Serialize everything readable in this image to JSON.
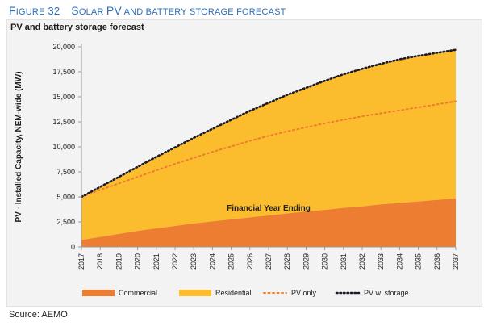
{
  "figure": {
    "number_prefix": "F",
    "number_rest": "IGURE",
    "number": "32",
    "title_first": "S",
    "title_rest1": "OLAR ",
    "title_pv": "PV",
    "title_rest2": " AND BATTERY STORAGE FORECAST"
  },
  "source": "Source: AEMO",
  "chart_data": {
    "type": "area",
    "title": "PV and battery storage forecast",
    "xlabel": "Financial Year Ending",
    "ylabel": "PV - Installed Capacity, NEM-wide (MW)",
    "ylim": [
      0,
      20000
    ],
    "yticks": [
      0,
      2500,
      5000,
      7500,
      10000,
      12500,
      15000,
      17500,
      20000
    ],
    "ytick_labels": [
      "0",
      "2,500",
      "5,000",
      "7,500",
      "10,000",
      "12,500",
      "15,000",
      "17,500",
      "20,000"
    ],
    "x": [
      "2017",
      "2018",
      "2019",
      "2020",
      "2021",
      "2022",
      "2023",
      "2024",
      "2025",
      "2026",
      "2027",
      "2028",
      "2029",
      "2030",
      "2031",
      "2032",
      "2033",
      "2034",
      "2035",
      "2036",
      "2037"
    ],
    "legend_position": "bottom",
    "grid": false,
    "series": [
      {
        "name": "Commercial",
        "kind": "stacked-area",
        "color": "#ed7d31",
        "values": [
          700,
          1000,
          1300,
          1600,
          1850,
          2100,
          2350,
          2550,
          2750,
          2950,
          3150,
          3350,
          3550,
          3700,
          3900,
          4050,
          4250,
          4400,
          4550,
          4700,
          4850
        ]
      },
      {
        "name": "Residential",
        "kind": "stacked-area",
        "color": "#fbbd2e",
        "values": [
          4300,
          5000,
          5700,
          6400,
          7150,
          7850,
          8550,
          9250,
          9950,
          10650,
          11250,
          11850,
          12350,
          12900,
          13350,
          13750,
          14050,
          14350,
          14550,
          14700,
          14850
        ]
      },
      {
        "name": "PV only",
        "kind": "dotted-line",
        "color": "#ed7d31",
        "values": [
          5000,
          5700,
          6350,
          7000,
          7650,
          8300,
          8900,
          9500,
          10050,
          10600,
          11100,
          11550,
          11950,
          12350,
          12700,
          13050,
          13350,
          13650,
          13950,
          14250,
          14550
        ]
      },
      {
        "name": "PV w. storage",
        "kind": "dotted-line",
        "color": "#1a1a2a",
        "values": [
          5000,
          6000,
          7000,
          8000,
          9000,
          9950,
          10900,
          11800,
          12700,
          13600,
          14400,
          15200,
          15900,
          16600,
          17250,
          17800,
          18300,
          18750,
          19100,
          19400,
          19700
        ]
      }
    ]
  }
}
